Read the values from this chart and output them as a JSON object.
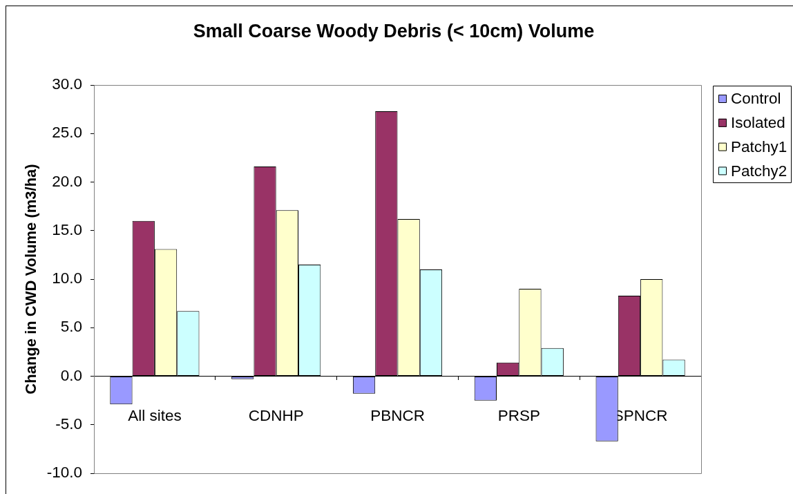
{
  "chart_data": {
    "type": "bar",
    "title": "Small Coarse Woody Debris (< 10cm) Volume",
    "ylabel": "Change in CWD Volume (m3/ha)",
    "categories": [
      "All sites",
      "CDNHP",
      "PBNCR",
      "PRSP",
      "SPNCR"
    ],
    "series": [
      {
        "name": "Control",
        "color": "#9999ff",
        "values": [
          -2.9,
          -0.3,
          -1.8,
          -2.5,
          -6.7
        ]
      },
      {
        "name": "Isolated",
        "color": "#993366",
        "values": [
          16.0,
          21.6,
          27.3,
          1.4,
          8.3
        ]
      },
      {
        "name": "Patchy1",
        "color": "#ffffcc",
        "values": [
          13.1,
          17.1,
          16.2,
          9.0,
          10.0
        ]
      },
      {
        "name": "Patchy2",
        "color": "#ccffff",
        "values": [
          6.7,
          11.5,
          11.0,
          2.9,
          1.7
        ]
      }
    ],
    "ylim": [
      -10,
      30
    ],
    "yticks": [
      {
        "value": -10,
        "label": "-10.0"
      },
      {
        "value": -5,
        "label": "-5.0"
      },
      {
        "value": 0,
        "label": "0.0"
      },
      {
        "value": 5,
        "label": "5.0"
      },
      {
        "value": 10,
        "label": "10.0"
      },
      {
        "value": 15,
        "label": "15.0"
      },
      {
        "value": 20,
        "label": "20.0"
      },
      {
        "value": 25,
        "label": "25.0"
      },
      {
        "value": 30,
        "label": "30.0"
      }
    ],
    "legend": "right"
  }
}
